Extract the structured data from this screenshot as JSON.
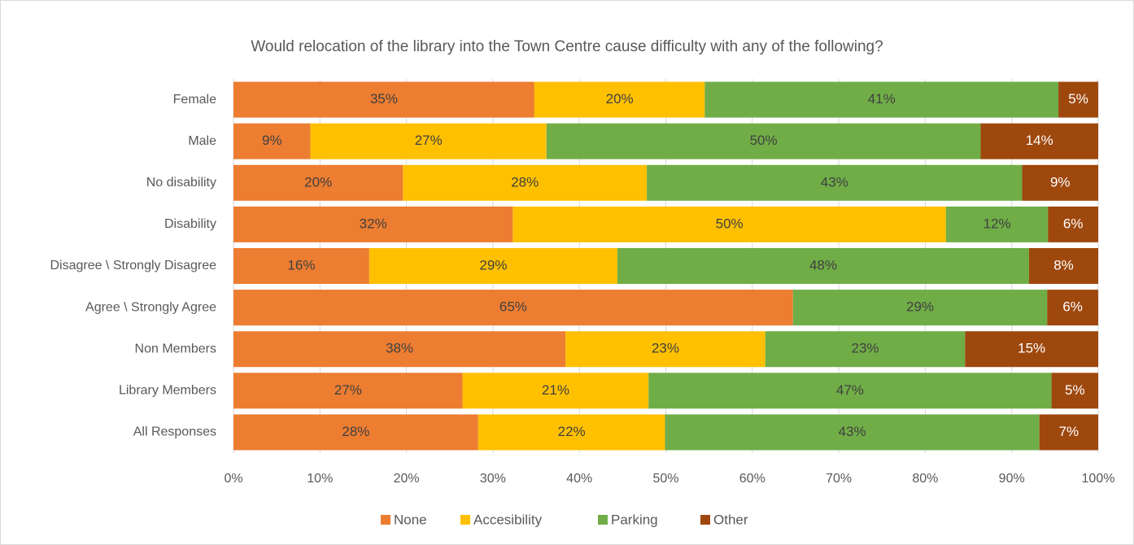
{
  "chart_data": {
    "type": "stacked_barh",
    "title": "Would relocation of the library into the Town Centre cause difficulty with any of the following?",
    "categories": [
      "Female",
      "Male",
      "No disability",
      "Disability",
      "Disagree \\ Strongly Disagree",
      "Agree \\ Strongly Agree",
      "Non Members",
      "Library Members",
      "All Responses"
    ],
    "series": [
      {
        "name": "None",
        "color": "#ed7d31",
        "label_color": "#404040",
        "values": [
          34.8,
          8.9,
          19.6,
          32.3,
          15.7,
          64.7,
          38.4,
          26.5,
          28.3
        ],
        "value_labels": [
          "35%",
          "9%",
          "20%",
          "32%",
          "16%",
          "65%",
          "38%",
          "27%",
          "28%"
        ]
      },
      {
        "name": "Accesibility",
        "color": "#ffc000",
        "label_color": "#404040",
        "values": [
          19.7,
          27.3,
          28.2,
          50.1,
          28.7,
          0,
          23.1,
          21.5,
          21.6
        ],
        "value_labels": [
          "20%",
          "27%",
          "28%",
          "50%",
          "29%",
          null,
          "23%",
          "21%",
          "22%"
        ]
      },
      {
        "name": "Parking",
        "color": "#70ad47",
        "label_color": "#404040",
        "values": [
          40.9,
          50.2,
          43.4,
          11.8,
          47.6,
          29.4,
          23.1,
          46.6,
          43.3
        ],
        "value_labels": [
          "41%",
          "50%",
          "43%",
          "12%",
          "48%",
          "29%",
          "23%",
          "47%",
          "43%"
        ]
      },
      {
        "name": "Other",
        "color": "#9e480e",
        "label_color": "#ffffff",
        "values": [
          4.6,
          13.6,
          8.8,
          5.8,
          8.0,
          5.9,
          15.4,
          5.4,
          6.8
        ],
        "value_labels": [
          "5%",
          "14%",
          "9%",
          "6%",
          "8%",
          "6%",
          "15%",
          "5%",
          "7%"
        ]
      }
    ],
    "xlim": [
      0,
      100
    ],
    "xticks": [
      {
        "value": 0,
        "label": "0%"
      },
      {
        "value": 10,
        "label": "10%"
      },
      {
        "value": 20,
        "label": "20%"
      },
      {
        "value": 30,
        "label": "30%"
      },
      {
        "value": 40,
        "label": "40%"
      },
      {
        "value": 50,
        "label": "50%"
      },
      {
        "value": 60,
        "label": "60%"
      },
      {
        "value": 70,
        "label": "70%"
      },
      {
        "value": 80,
        "label": "80%"
      },
      {
        "value": 90,
        "label": "90%"
      },
      {
        "value": 100,
        "label": "100%"
      }
    ],
    "grid": true,
    "legend": "bottom"
  }
}
